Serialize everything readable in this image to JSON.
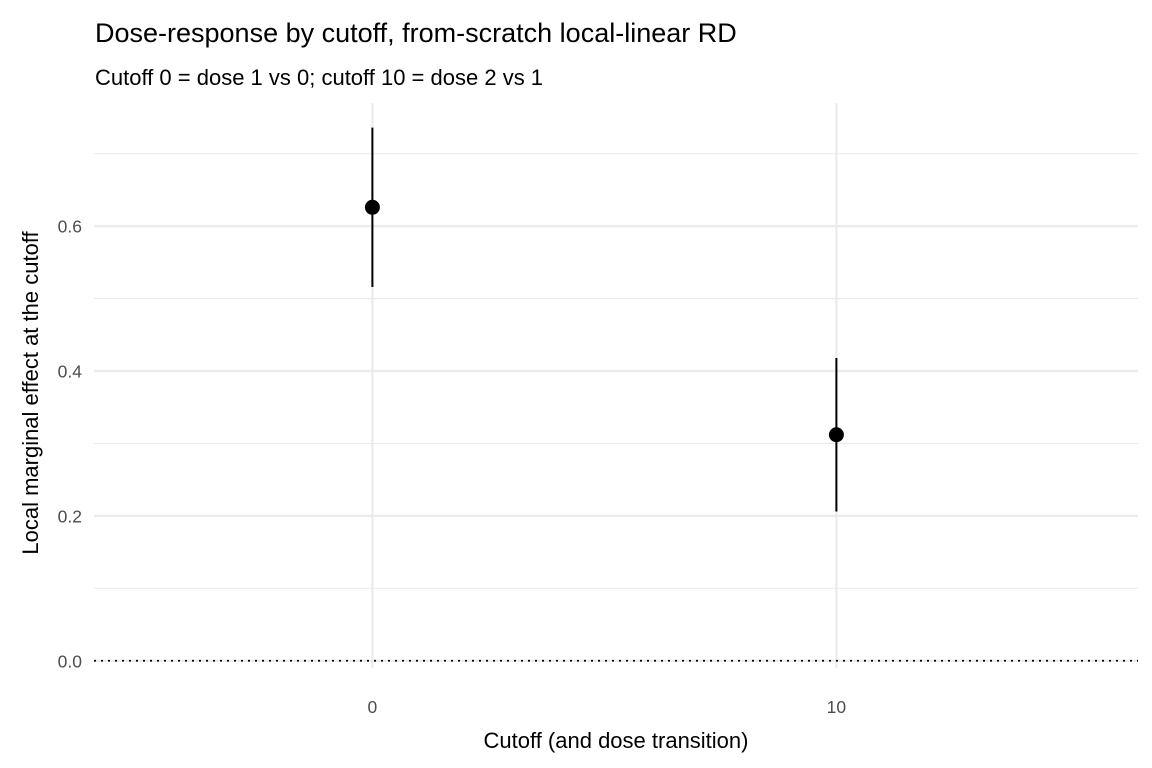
{
  "chart_data": {
    "type": "scatter",
    "title": "Dose-response by cutoff, from-scratch local-linear RD",
    "subtitle": "Cutoff 0 = dose 1 vs 0; cutoff 10 = dose 2 vs 1",
    "xlabel": "Cutoff (and dose transition)",
    "ylabel": "Local marginal effect at the cutoff",
    "x_tick_labels": [
      "0",
      "10"
    ],
    "x_ticks": [
      0,
      10
    ],
    "y_tick_labels": [
      "0.0",
      "0.2",
      "0.4",
      "0.6"
    ],
    "y_ticks": [
      0.0,
      0.2,
      0.4,
      0.6
    ],
    "xlim": [
      -6,
      16.5
    ],
    "ylim": [
      -0.01,
      0.77
    ],
    "grid": true,
    "reference_line": {
      "y": 0.0,
      "style": "dotted"
    },
    "points": [
      {
        "x": 0,
        "y": 0.626,
        "lower": 0.516,
        "upper": 0.736
      },
      {
        "x": 10,
        "y": 0.312,
        "lower": 0.206,
        "upper": 0.418
      }
    ],
    "point_color": "#000000",
    "grid_color": "#ebebeb"
  }
}
